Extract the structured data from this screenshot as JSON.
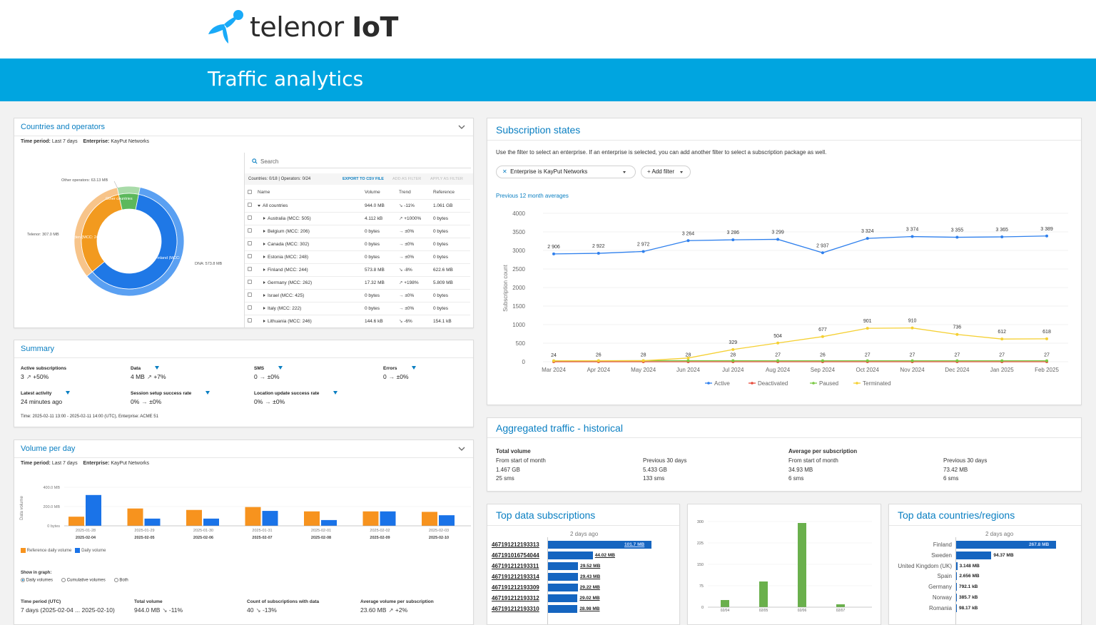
{
  "brand": {
    "name_light": "telenor ",
    "name_bold": "IoT",
    "color": "#00a5e0"
  },
  "page": {
    "title": "Traffic analytics"
  },
  "countries": {
    "title": "Countries and operators",
    "time_label": "Time period:",
    "time_value": "Last 7 days",
    "ent_label": "Enterprise:",
    "ent_value": "KayPut Networks",
    "donut_labels": {
      "other_ops": "Other operators: 63.13 MB",
      "telenor": "Telenor: 307.0 MB",
      "dna": "DNA: 573.8 MB",
      "other_countries": "Other countries",
      "sweden": "Sweden (MCC: 240)",
      "finland": "Finland (MCC: 244)"
    },
    "search_placeholder": "Search",
    "counts": "Countries: 0/18 | Operators: 0/24",
    "export": "EXPORT TO CSV FILE",
    "add_filter": "ADD AS FILTER",
    "apply_filter": "APPLY AS FILTER",
    "columns": [
      "Name",
      "Volume",
      "Trend",
      "Reference"
    ],
    "rows": [
      {
        "name": "All countries",
        "volume": "944.0 MB",
        "trend": "-11%",
        "ref": "1.061 GB",
        "root": true
      },
      {
        "name": "Australia (MCC: 505)",
        "volume": "4.112 kB",
        "trend": "+1000%",
        "ref": "0 bytes"
      },
      {
        "name": "Belgium (MCC: 206)",
        "volume": "0 bytes",
        "trend": "±0%",
        "ref": "0 bytes"
      },
      {
        "name": "Canada (MCC: 302)",
        "volume": "0 bytes",
        "trend": "±0%",
        "ref": "0 bytes"
      },
      {
        "name": "Estonia (MCC: 248)",
        "volume": "0 bytes",
        "trend": "±0%",
        "ref": "0 bytes"
      },
      {
        "name": "Finland (MCC: 244)",
        "volume": "573.8 MB",
        "trend": "-8%",
        "ref": "622.6 MB"
      },
      {
        "name": "Germany (MCC: 262)",
        "volume": "17.32 MB",
        "trend": "+198%",
        "ref": "5.809 MB"
      },
      {
        "name": "Israel (MCC: 425)",
        "volume": "0 bytes",
        "trend": "±0%",
        "ref": "0 bytes"
      },
      {
        "name": "Italy (MCC: 222)",
        "volume": "0 bytes",
        "trend": "±0%",
        "ref": "0 bytes"
      },
      {
        "name": "Lithuania (MCC: 246)",
        "volume": "144.6 kB",
        "trend": "-6%",
        "ref": "154.1 kB"
      }
    ]
  },
  "summary": {
    "title": "Summary",
    "items": [
      {
        "label": "Active subscriptions",
        "value": "3",
        "trend": "+50%"
      },
      {
        "label": "Data",
        "value": "4 MB",
        "trend": "+7%"
      },
      {
        "label": "SMS",
        "value": "0",
        "trend": "±0%"
      },
      {
        "label": "Errors",
        "value": "0",
        "trend": "±0%"
      },
      {
        "label": "Latest activity",
        "value": "24 minutes ago",
        "trend": ""
      },
      {
        "label": "Session setup success rate",
        "value": "0%",
        "trend": "±0%"
      },
      {
        "label": "Location update success rate",
        "value": "0%",
        "trend": "±0%"
      }
    ],
    "footer": "Time: 2025-02-11 13:00 - 2025-02-11 14:00 (UTC), Enterprise: ACME 51"
  },
  "volume": {
    "title": "Volume per day",
    "time_label": "Time period:",
    "time_value": "Last 7 days",
    "ent_label": "Enterprise:",
    "ent_value": "KayPut Networks",
    "ylabel": "Data volume",
    "yticks": [
      "400.0 MB",
      "200.0 MB",
      "0 bytes"
    ],
    "ref_dates": [
      "2025-01-28",
      "2025-01-29",
      "2025-01-30",
      "2025-01-31",
      "2025-02-01",
      "2025-02-02",
      "2025-02-03"
    ],
    "cur_dates": [
      "2025-02-04",
      "2025-02-05",
      "2025-02-06",
      "2025-02-07",
      "2025-02-08",
      "2025-02-09",
      "2025-02-10"
    ],
    "legend_ref": "Reference daily volume",
    "legend_cur": "Daily volume",
    "show_label": "Show in graph:",
    "options": [
      "Daily volumes",
      "Cumulative volumes",
      "Both"
    ],
    "stats": [
      {
        "label": "Time period (UTC)",
        "value": "7 days (2025-02-04 ... 2025-02-10)"
      },
      {
        "label": "Total volume",
        "value": "944.0 MB",
        "trend": "-11%"
      },
      {
        "label": "Count of subscriptions with data",
        "value": "40",
        "trend": "-13%"
      },
      {
        "label": "Average volume per subscription",
        "value": "23.60 MB",
        "trend": "+2%"
      }
    ]
  },
  "states": {
    "title": "Subscription states",
    "desc": "Use the filter to select an enterprise. If an enterprise is selected, you can add another filter to select a subscription package as well.",
    "filter_key": "Enterprise",
    "filter_op": "is",
    "filter_value": "KayPut Networks",
    "add_filter": "Add filter",
    "subtitle": "Previous 12 month averages",
    "ylabel": "Subscription count"
  },
  "aggregated": {
    "title": "Aggregated traffic - historical",
    "total_label": "Total volume",
    "avg_label": "Average per subscription",
    "cols": [
      {
        "h": "From start of month",
        "a": "1.467 GB",
        "b": "25 sms"
      },
      {
        "h": "Previous 30 days",
        "a": "5.433 GB",
        "b": "133 sms"
      },
      {
        "h": "From start of month",
        "a": "34.93 MB",
        "b": "6 sms"
      },
      {
        "h": "Previous 30 days",
        "a": "73.42 MB",
        "b": "6 sms"
      }
    ]
  },
  "top_subs": {
    "title": "Top data subscriptions",
    "ago": "2 days ago",
    "items": [
      {
        "id": "467191212193313",
        "value": "101.7 MB"
      },
      {
        "id": "467191016754044",
        "value": "44.02 MB"
      },
      {
        "id": "467191212193311",
        "value": "29.52 MB"
      },
      {
        "id": "467191212193314",
        "value": "29.43 MB"
      },
      {
        "id": "467191212193309",
        "value": "29.22 MB"
      },
      {
        "id": "467191212193312",
        "value": "29.02 MB"
      },
      {
        "id": "467191212193310",
        "value": "28.98 MB"
      }
    ]
  },
  "top_countries": {
    "title": "Top data countries/regions",
    "ago": "2 days ago",
    "items": [
      {
        "name": "Finland",
        "value": "267.8 MB"
      },
      {
        "name": "Sweden",
        "value": "94.37 MB"
      },
      {
        "name": "United Kingdom (UK)",
        "value": "3.148 MB"
      },
      {
        "name": "Spain",
        "value": "2.656 MB"
      },
      {
        "name": "Germany",
        "value": "792.1 kB"
      },
      {
        "name": "Norway",
        "value": "385.7 kB"
      },
      {
        "name": "Romania",
        "value": "98.17 kB"
      }
    ]
  },
  "chart_data": [
    {
      "type": "pie",
      "title": "Countries and operators",
      "inner_ring": [
        {
          "name": "Finland (MCC: 244)",
          "value": 573.8
        },
        {
          "name": "Sweden (MCC: 240)",
          "value": 307.0
        },
        {
          "name": "Other countries",
          "value": 63.13
        }
      ],
      "outer_ring": [
        {
          "name": "DNA",
          "value": 573.8
        },
        {
          "name": "Telenor",
          "value": 307.0
        },
        {
          "name": "Other operators",
          "value": 63.13
        }
      ],
      "colors": [
        "#1f78e6",
        "#f29a1f",
        "#5cb85c"
      ]
    },
    {
      "type": "bar",
      "title": "Volume per day",
      "categories": [
        "2025-02-04",
        "2025-02-05",
        "2025-02-06",
        "2025-02-07",
        "2025-02-08",
        "2025-02-09",
        "2025-02-10"
      ],
      "series": [
        {
          "name": "Reference daily volume",
          "color": "#f7931e",
          "values": [
            95,
            180,
            165,
            195,
            150,
            150,
            145
          ]
        },
        {
          "name": "Daily volume",
          "color": "#1a73e8",
          "values": [
            320,
            75,
            75,
            155,
            60,
            150,
            110
          ]
        }
      ],
      "ylim": [
        0,
        400
      ]
    },
    {
      "type": "line",
      "title": "Previous 12 month averages",
      "ylabel": "Subscription count",
      "categories": [
        "Mar 2024",
        "Apr 2024",
        "May 2024",
        "Jun 2024",
        "Jul 2024",
        "Aug 2024",
        "Sep 2024",
        "Oct 2024",
        "Nov 2024",
        "Dec 2024",
        "Jan 2025",
        "Feb 2025"
      ],
      "ylim": [
        0,
        4000
      ],
      "yticks": [
        0,
        500,
        1000,
        1500,
        2000,
        2500,
        3000,
        3500,
        4000
      ],
      "series": [
        {
          "name": "Active",
          "color": "#2f80ed",
          "values": [
            2906,
            2922,
            2972,
            3264,
            3286,
            3299,
            2937,
            3324,
            3374,
            3355,
            3365,
            3389
          ],
          "labels": [
            "2 906",
            "2 922",
            "2 972",
            "3 264",
            "3 286",
            "3 299",
            "2 937",
            "3 324",
            "3 374",
            "3 355",
            "3 365",
            "3 389"
          ]
        },
        {
          "name": "Deactivated",
          "color": "#e74c3c",
          "values": [
            0,
            0,
            0,
            0,
            0,
            0,
            0,
            0,
            0,
            0,
            0,
            0
          ]
        },
        {
          "name": "Paused",
          "color": "#7ac943",
          "values": [
            24,
            26,
            28,
            28,
            28,
            27,
            26,
            27,
            27,
            27,
            27,
            27
          ],
          "labels": [
            "24",
            "26",
            "28",
            "28",
            "28",
            "27",
            "26",
            "27",
            "27",
            "27",
            "27",
            "27"
          ]
        },
        {
          "name": "Terminated",
          "color": "#f5d033",
          "values": [
            24,
            26,
            28,
            100,
            329,
            504,
            677,
            901,
            910,
            736,
            612,
            618
          ],
          "labels": [
            "",
            "",
            "",
            "",
            "329",
            "504",
            "677",
            "901",
            "910",
            "736",
            "612",
            "618"
          ]
        }
      ]
    },
    {
      "type": "bar",
      "title": "Daily data bars",
      "categories": [
        "02/04",
        "02/05",
        "02/06",
        "02/07"
      ],
      "values": [
        25,
        90,
        295,
        10
      ],
      "ylim": [
        0,
        300
      ],
      "yticks": [
        0,
        75,
        150,
        225,
        300
      ],
      "color": "#6ab04c"
    }
  ]
}
